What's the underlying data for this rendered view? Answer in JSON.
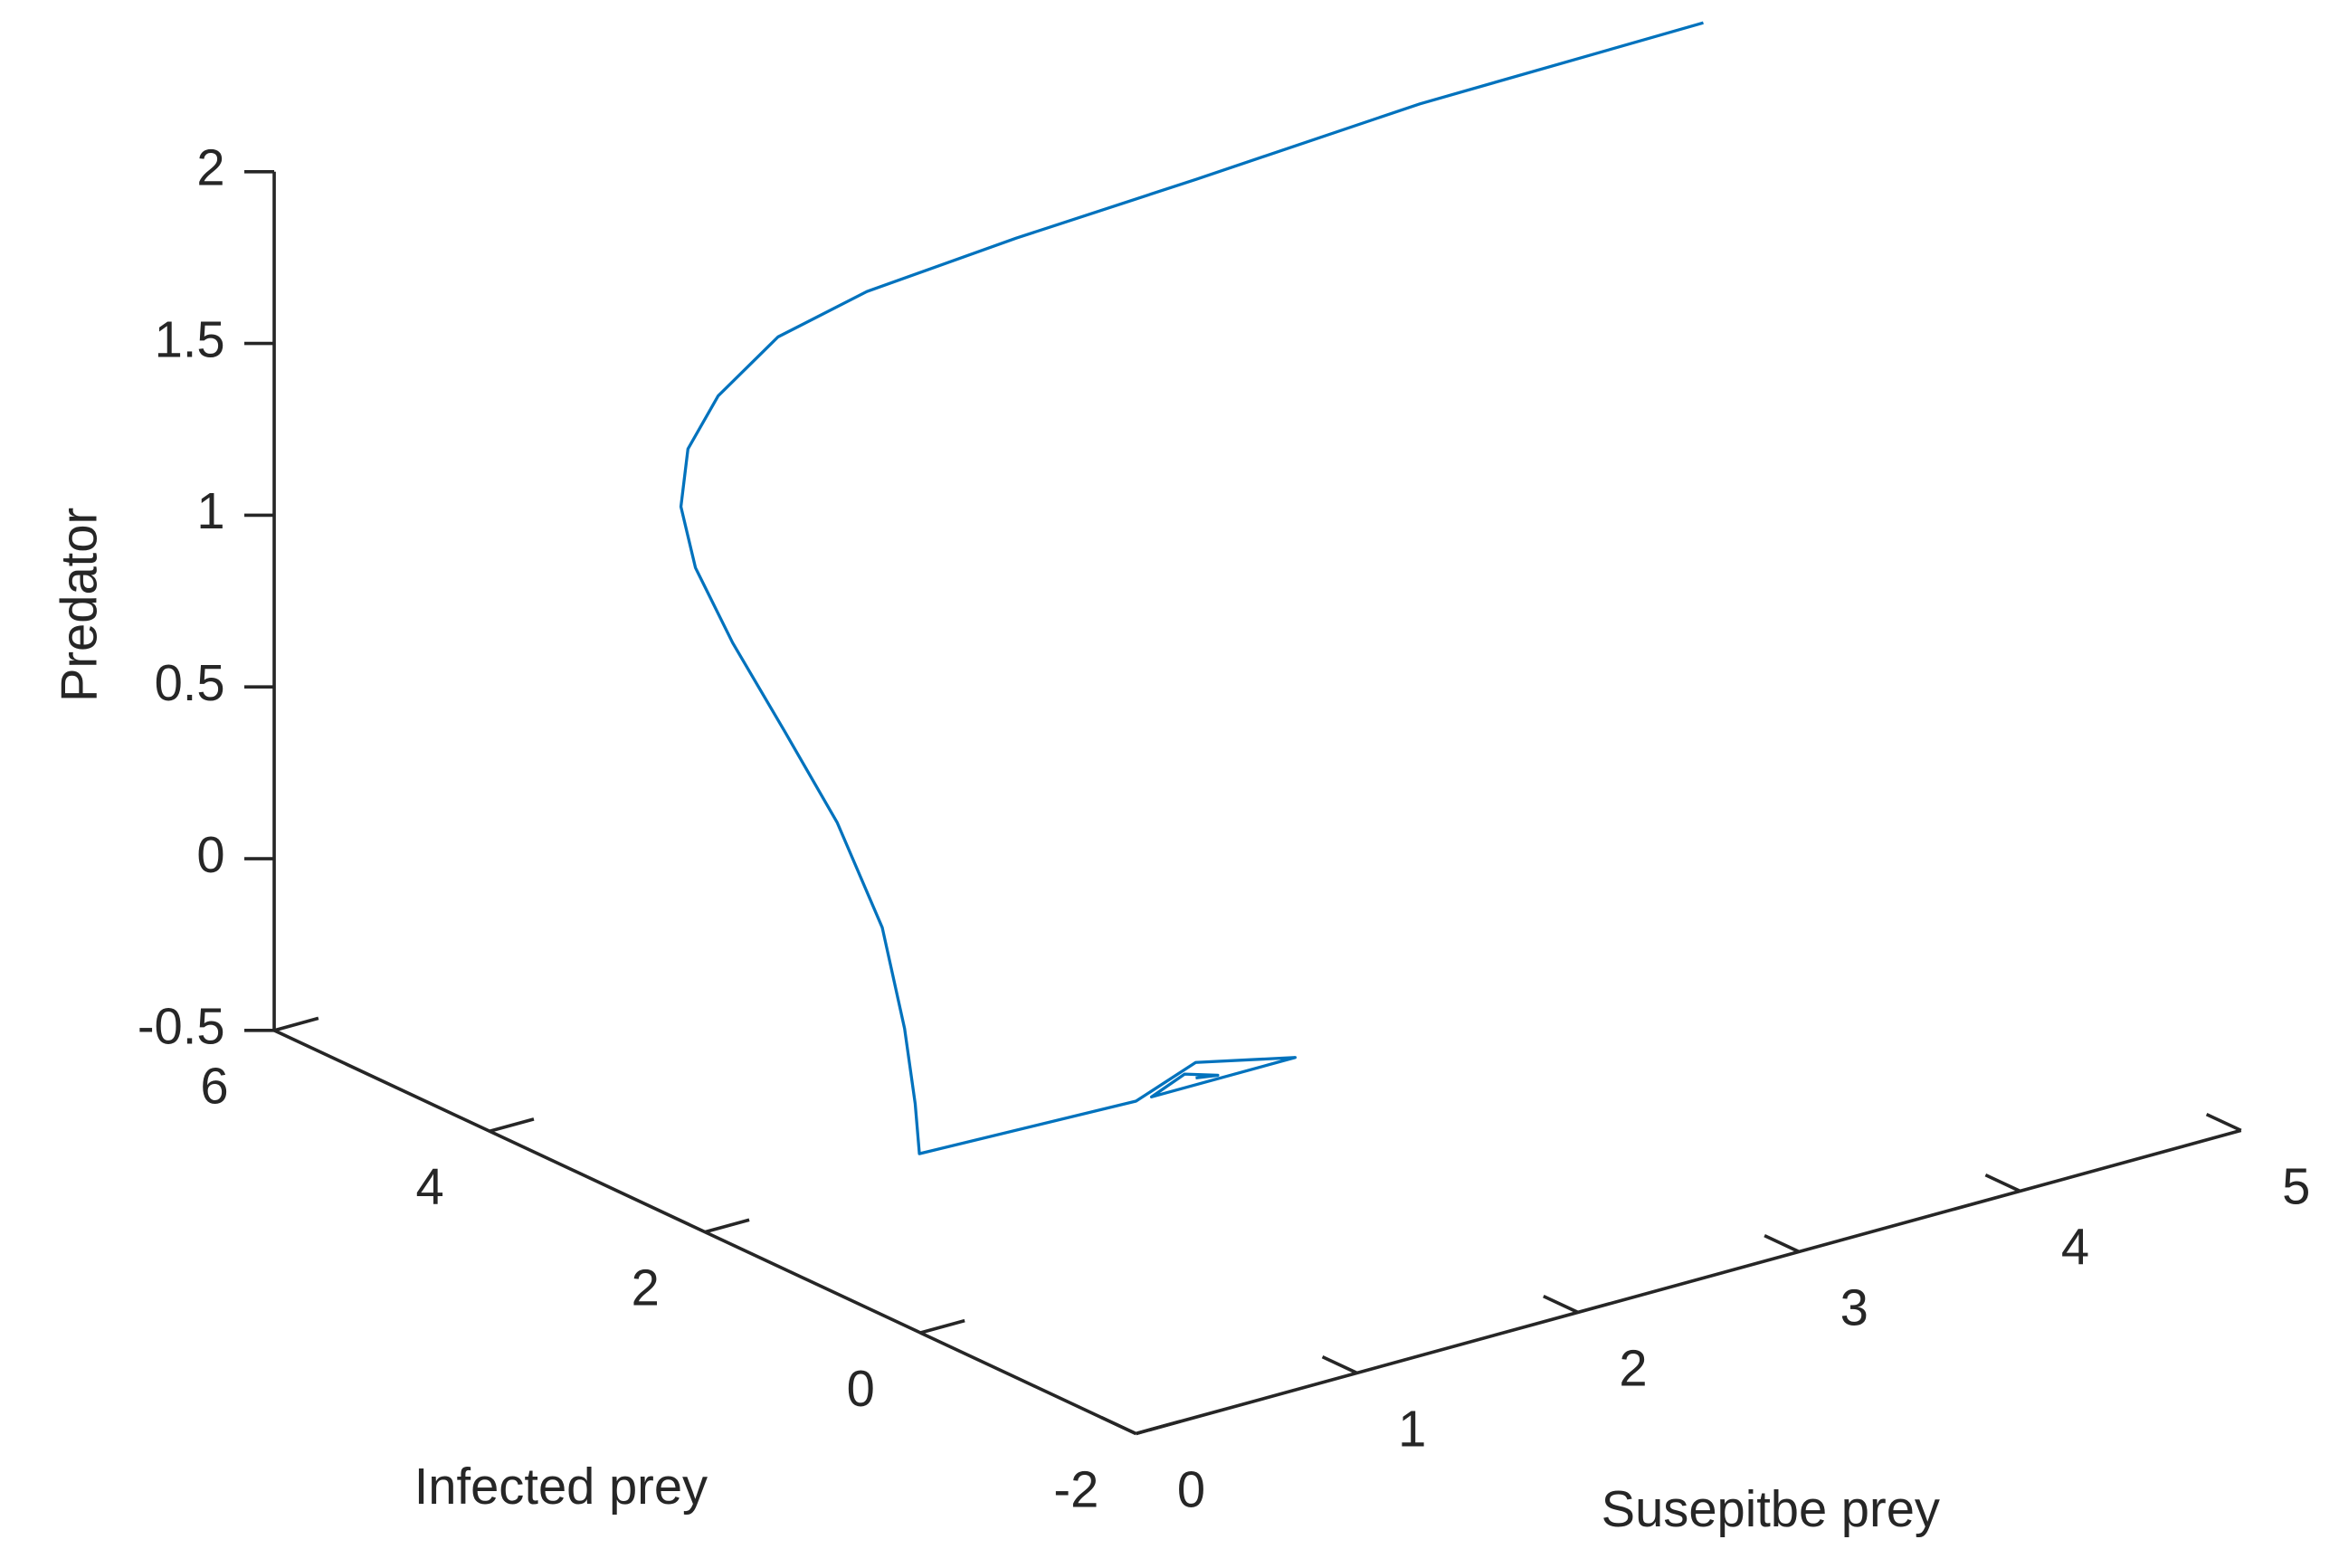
{
  "chart_data": {
    "type": "line3d",
    "xlabel": "Susepitbe prey",
    "ylabel": "Infected prey",
    "zlabel": "Predator",
    "xlim": [
      0,
      5
    ],
    "ylim": [
      -2,
      6
    ],
    "zlim": [
      -0.5,
      2
    ],
    "xticks": [
      0,
      1,
      2,
      3,
      4,
      5
    ],
    "yticks": [
      -2,
      0,
      2,
      4,
      6
    ],
    "zticks": [
      -0.5,
      0,
      0.5,
      1,
      1.5,
      2
    ],
    "series": [
      {
        "color": "#0072bd",
        "x": [
          4,
          3.2,
          2.5,
          1.9,
          1.4,
          1.1,
          0.8,
          0.6,
          0.5,
          0.4,
          0.3,
          0.2,
          0.15,
          0.1,
          0.05,
          0.02,
          0,
          0.98,
          1.25,
          1.7,
          1.3,
          1.05,
          1.2,
          1.35,
          1.25
        ],
        "y": [
          0.94,
          1.93,
          2.57,
          3.01,
          3.37,
          3.58,
          3.52,
          3.39,
          3.25,
          2.91,
          2.36,
          1.67,
          1.08,
          0.56,
          0.25,
          0.09,
          0.01,
          0.01,
          0.01,
          0.01,
          0.01,
          0.01,
          0.01,
          0.01,
          0.01
        ],
        "z": [
          2.47,
          2.23,
          2.04,
          1.91,
          1.79,
          1.68,
          1.57,
          1.47,
          1.34,
          1.23,
          1.11,
          0.97,
          0.8,
          0.58,
          0.34,
          0.15,
          0.02,
          0,
          0.065,
          0,
          0,
          0,
          0.04,
          0.01,
          0.02
        ]
      }
    ]
  }
}
